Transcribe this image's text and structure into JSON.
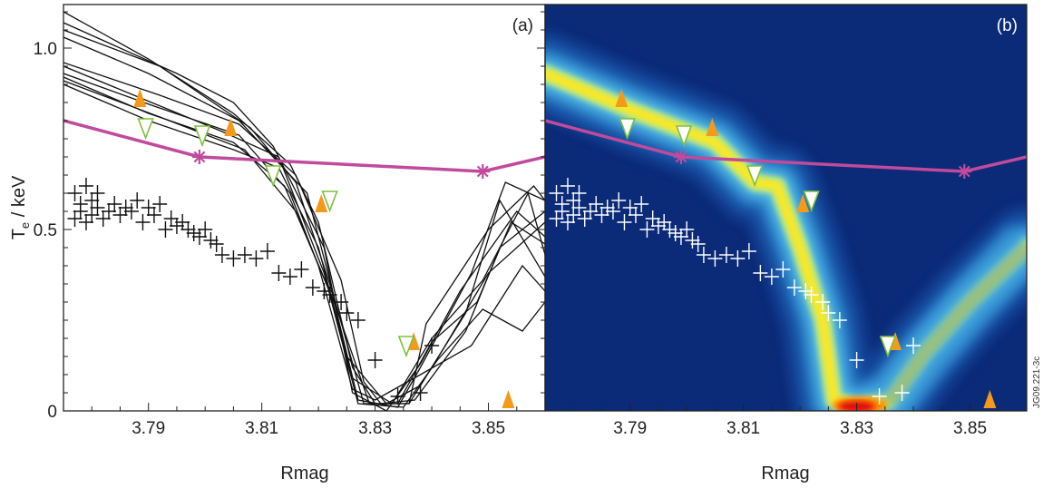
{
  "figure_id": "JG09.221-3c",
  "colors": {
    "ece_line": "#c04a9c",
    "up_triangle": "#f39a1b",
    "down_triangle_edge": "#7fbf3f",
    "trajectory_a": "#111111",
    "points_a": "#111111",
    "points_b": "#ffffff",
    "heatmap_background": "#0b2a78"
  },
  "chart_data": [
    {
      "panel_label": "(a)",
      "type": "line",
      "xlabel": "Rmag",
      "ylabel": "T_e / keV",
      "xlim": [
        3.775,
        3.86
      ],
      "ylim": [
        0,
        1.12
      ],
      "xticks": [
        "3.79",
        "3.81",
        "3.83",
        "3.85"
      ],
      "yticks": [
        "0",
        "0.5",
        "1.0"
      ],
      "grid": false,
      "profile_line": {
        "x": [
          3.775,
          3.799,
          3.849,
          3.86
        ],
        "y": [
          0.8,
          0.7,
          0.66,
          0.7
        ],
        "markers_x": [
          3.799,
          3.849
        ],
        "markers_y": [
          0.7,
          0.66
        ]
      },
      "trajectories": [
        [
          [
            3.775,
            1.1
          ],
          [
            3.79,
            0.97
          ],
          [
            3.805,
            0.82
          ],
          [
            3.815,
            0.68
          ],
          [
            3.82,
            0.52
          ],
          [
            3.826,
            0.12
          ],
          [
            3.83,
            0.02
          ],
          [
            3.836,
            0.02
          ],
          [
            3.842,
            0.17
          ],
          [
            3.85,
            0.38
          ],
          [
            3.86,
            0.52
          ]
        ],
        [
          [
            3.775,
            1.07
          ],
          [
            3.795,
            0.93
          ],
          [
            3.805,
            0.85
          ],
          [
            3.812,
            0.73
          ],
          [
            3.821,
            0.45
          ],
          [
            3.826,
            0.05
          ],
          [
            3.832,
            0.0
          ],
          [
            3.838,
            0.13
          ],
          [
            3.845,
            0.33
          ],
          [
            3.855,
            0.55
          ],
          [
            3.86,
            0.48
          ]
        ],
        [
          [
            3.775,
            1.05
          ],
          [
            3.792,
            0.95
          ],
          [
            3.808,
            0.78
          ],
          [
            3.816,
            0.63
          ],
          [
            3.822,
            0.35
          ],
          [
            3.827,
            0.03
          ],
          [
            3.834,
            0.01
          ],
          [
            3.838,
            0.12
          ],
          [
            3.847,
            0.38
          ],
          [
            3.853,
            0.63
          ],
          [
            3.86,
            0.58
          ]
        ],
        [
          [
            3.775,
            1.03
          ],
          [
            3.79,
            0.93
          ],
          [
            3.806,
            0.8
          ],
          [
            3.818,
            0.6
          ],
          [
            3.823,
            0.3
          ],
          [
            3.828,
            0.02
          ],
          [
            3.834,
            0.02
          ],
          [
            3.84,
            0.19
          ],
          [
            3.848,
            0.3
          ],
          [
            3.854,
            0.52
          ],
          [
            3.86,
            0.46
          ]
        ],
        [
          [
            3.775,
            0.96
          ],
          [
            3.792,
            0.87
          ],
          [
            3.806,
            0.79
          ],
          [
            3.816,
            0.65
          ],
          [
            3.824,
            0.36
          ],
          [
            3.828,
            0.08
          ],
          [
            3.831,
            0.02
          ],
          [
            3.837,
            0.03
          ],
          [
            3.846,
            0.22
          ],
          [
            3.852,
            0.45
          ],
          [
            3.86,
            0.55
          ]
        ],
        [
          [
            3.775,
            0.95
          ],
          [
            3.789,
            0.86
          ],
          [
            3.803,
            0.77
          ],
          [
            3.813,
            0.7
          ],
          [
            3.821,
            0.38
          ],
          [
            3.827,
            0.02
          ],
          [
            3.835,
            0.01
          ],
          [
            3.841,
            0.14
          ],
          [
            3.849,
            0.28
          ],
          [
            3.856,
            0.22
          ],
          [
            3.86,
            0.3
          ]
        ],
        [
          [
            3.775,
            0.93
          ],
          [
            3.791,
            0.84
          ],
          [
            3.806,
            0.76
          ],
          [
            3.815,
            0.6
          ],
          [
            3.82,
            0.4
          ],
          [
            3.826,
            0.06
          ],
          [
            3.83,
            0.03
          ],
          [
            3.838,
            0.1
          ],
          [
            3.847,
            0.18
          ],
          [
            3.856,
            0.4
          ],
          [
            3.86,
            0.33
          ]
        ],
        [
          [
            3.775,
            0.92
          ],
          [
            3.79,
            0.82
          ],
          [
            3.805,
            0.74
          ],
          [
            3.814,
            0.62
          ],
          [
            3.822,
            0.33
          ],
          [
            3.826,
            0.09
          ],
          [
            3.833,
            0.02
          ],
          [
            3.84,
            0.2
          ],
          [
            3.849,
            0.36
          ],
          [
            3.857,
            0.6
          ],
          [
            3.86,
            0.43
          ]
        ],
        [
          [
            3.775,
            0.91
          ],
          [
            3.792,
            0.81
          ],
          [
            3.807,
            0.72
          ],
          [
            3.816,
            0.55
          ],
          [
            3.823,
            0.29
          ],
          [
            3.829,
            0.02
          ],
          [
            3.836,
            0.02
          ],
          [
            3.839,
            0.24
          ],
          [
            3.85,
            0.5
          ],
          [
            3.858,
            0.62
          ],
          [
            3.86,
            0.58
          ]
        ],
        [
          [
            3.775,
            0.9
          ],
          [
            3.79,
            0.8
          ],
          [
            3.805,
            0.72
          ],
          [
            3.813,
            0.67
          ],
          [
            3.82,
            0.45
          ],
          [
            3.825,
            0.15
          ],
          [
            3.832,
            0.02
          ],
          [
            3.838,
            0.07
          ],
          [
            3.846,
            0.27
          ],
          [
            3.852,
            0.58
          ],
          [
            3.86,
            0.37
          ]
        ]
      ],
      "crosses": {
        "x": [
          3.777,
          3.777,
          3.778,
          3.778,
          3.779,
          3.779,
          3.78,
          3.78,
          3.781,
          3.781,
          3.782,
          3.783,
          3.784,
          3.785,
          3.786,
          3.787,
          3.788,
          3.789,
          3.79,
          3.791,
          3.792,
          3.793,
          3.794,
          3.795,
          3.796,
          3.797,
          3.798,
          3.799,
          3.8,
          3.801,
          3.802,
          3.803,
          3.805,
          3.807,
          3.809,
          3.811,
          3.813,
          3.815,
          3.817,
          3.819,
          3.821,
          3.822,
          3.824,
          3.825,
          3.827,
          3.83,
          3.834,
          3.838,
          3.84
        ],
        "y": [
          0.6,
          0.53,
          0.57,
          0.55,
          0.62,
          0.52,
          0.58,
          0.54,
          0.56,
          0.6,
          0.53,
          0.55,
          0.57,
          0.54,
          0.56,
          0.55,
          0.58,
          0.52,
          0.56,
          0.54,
          0.57,
          0.5,
          0.53,
          0.51,
          0.52,
          0.5,
          0.49,
          0.48,
          0.5,
          0.47,
          0.46,
          0.43,
          0.42,
          0.43,
          0.42,
          0.44,
          0.38,
          0.37,
          0.39,
          0.34,
          0.33,
          0.32,
          0.3,
          0.27,
          0.25,
          0.14,
          0.04,
          0.05,
          0.18
        ]
      },
      "up_triangles": {
        "x": [
          3.7885,
          3.8045,
          3.8205,
          3.8368,
          3.8535
        ],
        "y": [
          0.86,
          0.78,
          0.57,
          0.19,
          0.03
        ]
      },
      "down_triangles": {
        "x": [
          3.7895,
          3.7995,
          3.812,
          3.822,
          3.8355
        ],
        "y": [
          0.78,
          0.76,
          0.65,
          0.58,
          0.18
        ]
      }
    },
    {
      "panel_label": "(b)",
      "type": "heatmap",
      "xlabel": "Rmag",
      "xlim": [
        3.775,
        3.86
      ],
      "ylim": [
        0,
        1.12
      ],
      "xticks": [
        "3.79",
        "3.81",
        "3.83",
        "3.85"
      ],
      "grid": false,
      "density_ridge": {
        "x": [
          3.775,
          3.79,
          3.805,
          3.812,
          3.816,
          3.82,
          3.824,
          3.826,
          3.83,
          3.836,
          3.842,
          3.85,
          3.86
        ],
        "y": [
          0.93,
          0.83,
          0.74,
          0.63,
          0.62,
          0.45,
          0.25,
          0.03,
          0.01,
          0.03,
          0.16,
          0.3,
          0.45
        ]
      },
      "profile_line": {
        "x": [
          3.775,
          3.799,
          3.849,
          3.86
        ],
        "y": [
          0.8,
          0.7,
          0.66,
          0.7
        ],
        "markers_x": [
          3.799,
          3.849
        ],
        "markers_y": [
          0.7,
          0.66
        ]
      },
      "crosses_same_as_panel_a": true,
      "up_triangles": {
        "x": [
          3.7885,
          3.8045,
          3.8205,
          3.8368,
          3.8535
        ],
        "y": [
          0.86,
          0.78,
          0.57,
          0.19,
          0.03
        ]
      },
      "down_triangles": {
        "x": [
          3.7895,
          3.7995,
          3.812,
          3.822,
          3.8355
        ],
        "y": [
          0.78,
          0.76,
          0.65,
          0.58,
          0.18
        ]
      }
    }
  ]
}
